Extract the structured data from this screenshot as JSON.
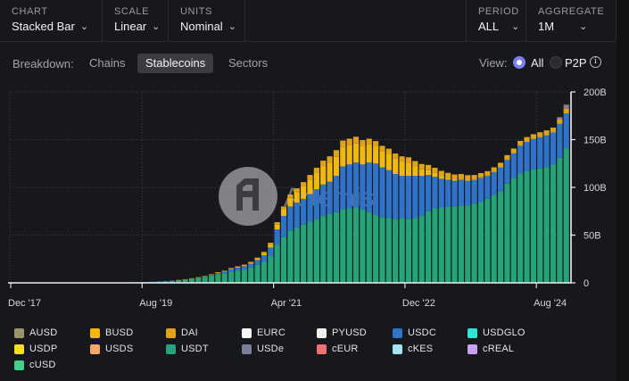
{
  "controls": {
    "chart": {
      "label": "CHART",
      "value": "Stacked Bar"
    },
    "scale": {
      "label": "SCALE",
      "value": "Linear"
    },
    "units": {
      "label": "UNITS",
      "value": "Nominal"
    },
    "period": {
      "label": "PERIOD",
      "value": "ALL"
    },
    "aggregate": {
      "label": "AGGREGATE",
      "value": "1M"
    }
  },
  "breakdown": {
    "label": "Breakdown:",
    "tabs": [
      "Chains",
      "Stablecoins",
      "Sectors"
    ],
    "active": "Stablecoins"
  },
  "view": {
    "label": "View:",
    "options": [
      "All",
      "P2P"
    ],
    "selected": "All",
    "info_icon": "info-icon"
  },
  "watermark": "Artemis",
  "colors": {
    "background": "#17181b",
    "accent": "#7b7cf7",
    "AUSD": "#9a946a",
    "BUSD": "#f0b90b",
    "DAI": "#e0a21c",
    "EURC": "#f5f5f5",
    "PYUSD": "#eeeeee",
    "USDC": "#2f73c9",
    "USDGLO": "#2ee6d6",
    "USDP": "#f3e21a",
    "USDS": "#f6a86a",
    "USDT": "#27a37a",
    "USDe": "#7c7f9a",
    "cEUR": "#f07070",
    "cKES": "#a6e3f2",
    "cREAL": "#c9a0f2",
    "cUSD": "#45cf8a"
  },
  "chart_data": {
    "type": "bar",
    "stacked": true,
    "x": [
      "2017-12",
      "2018-01",
      "2018-02",
      "2018-03",
      "2018-04",
      "2018-05",
      "2018-06",
      "2018-07",
      "2018-08",
      "2018-09",
      "2018-10",
      "2018-11",
      "2018-12",
      "2019-01",
      "2019-02",
      "2019-03",
      "2019-04",
      "2019-05",
      "2019-06",
      "2019-07",
      "2019-08",
      "2019-09",
      "2019-10",
      "2019-11",
      "2019-12",
      "2020-01",
      "2020-02",
      "2020-03",
      "2020-04",
      "2020-05",
      "2020-06",
      "2020-07",
      "2020-08",
      "2020-09",
      "2020-10",
      "2020-11",
      "2020-12",
      "2021-01",
      "2021-02",
      "2021-03",
      "2021-04",
      "2021-05",
      "2021-06",
      "2021-07",
      "2021-08",
      "2021-09",
      "2021-10",
      "2021-11",
      "2021-12",
      "2022-01",
      "2022-02",
      "2022-03",
      "2022-04",
      "2022-05",
      "2022-06",
      "2022-07",
      "2022-08",
      "2022-09",
      "2022-10",
      "2022-11",
      "2022-12",
      "2023-01",
      "2023-02",
      "2023-03",
      "2023-04",
      "2023-05",
      "2023-06",
      "2023-07",
      "2023-08",
      "2023-09",
      "2023-10",
      "2023-11",
      "2023-12",
      "2024-01",
      "2024-02",
      "2024-03",
      "2024-04",
      "2024-05",
      "2024-06",
      "2024-07",
      "2024-08",
      "2024-09",
      "2024-10",
      "2024-11",
      "2024-12"
    ],
    "x_ticks": [
      "Dec '17",
      "Aug '19",
      "Apr '21",
      "Dec '22",
      "Aug '24"
    ],
    "y_ticks": [
      "0",
      "50B",
      "100B",
      "150B",
      "200B"
    ],
    "ylim": [
      0,
      200
    ],
    "y_unit": "B",
    "grid": true,
    "series": [
      {
        "name": "USDT",
        "values": [
          0,
          0,
          0,
          0,
          0,
          0,
          0,
          0,
          0,
          0,
          0,
          0,
          0,
          0,
          0,
          0,
          0,
          0,
          0.5,
          0.6,
          0.8,
          1,
          1.3,
          1.5,
          2,
          2.4,
          3,
          4,
          5,
          6,
          7.5,
          9,
          10,
          12,
          13,
          14,
          16,
          19,
          22,
          28,
          40,
          48,
          55,
          58,
          61,
          64,
          67,
          70,
          72,
          74,
          77,
          78,
          79,
          77,
          74,
          71,
          69,
          68,
          67,
          68,
          67,
          68,
          70,
          75,
          78,
          79,
          80,
          80,
          81,
          81,
          83,
          85,
          88,
          92,
          96,
          104,
          110,
          114,
          117,
          119,
          120,
          121,
          124,
          131,
          141
        ]
      },
      {
        "name": "USDC",
        "values": [
          0,
          0,
          0,
          0,
          0,
          0,
          0,
          0,
          0,
          0,
          0,
          0,
          0,
          0,
          0,
          0,
          0,
          0,
          0,
          0,
          0,
          0.1,
          0.2,
          0.3,
          0.4,
          0.5,
          0.6,
          0.7,
          0.8,
          1,
          1.3,
          1.6,
          2,
          2.5,
          3,
          3.5,
          4,
          5,
          7,
          9,
          16,
          22,
          25,
          26,
          27,
          29,
          31,
          33,
          34,
          38,
          45,
          46,
          47,
          47,
          52,
          54,
          52,
          50,
          47,
          44,
          45,
          44,
          42,
          38,
          33,
          30,
          28,
          27,
          27,
          26,
          25,
          25,
          24,
          24,
          25,
          25,
          26,
          30,
          31,
          32,
          33,
          34,
          34,
          36,
          37
        ]
      },
      {
        "name": "BUSD",
        "values": [
          0,
          0,
          0,
          0,
          0,
          0,
          0,
          0,
          0,
          0,
          0,
          0,
          0,
          0,
          0,
          0,
          0,
          0,
          0,
          0,
          0,
          0,
          0,
          0,
          0,
          0,
          0,
          0,
          0,
          0,
          0,
          0.2,
          0.4,
          0.6,
          0.8,
          1,
          1.2,
          1.5,
          2,
          3,
          5,
          7,
          9,
          11,
          13,
          15,
          17,
          19,
          20,
          20,
          20,
          20,
          20,
          19,
          19,
          18,
          17,
          17,
          16,
          15,
          14,
          10,
          7,
          5,
          4,
          3,
          2,
          1.5,
          1,
          1,
          0.5,
          0.5,
          0.5,
          0.5,
          0.3,
          0.3,
          0.2,
          0.2,
          0.2,
          0.2,
          0.2,
          0.2,
          0.1,
          0.1,
          0.1
        ]
      },
      {
        "name": "DAI",
        "values": [
          0,
          0,
          0,
          0,
          0,
          0,
          0,
          0,
          0,
          0,
          0,
          0,
          0,
          0,
          0,
          0,
          0,
          0,
          0,
          0,
          0,
          0,
          0,
          0,
          0,
          0.05,
          0.1,
          0.1,
          0.1,
          0.15,
          0.2,
          0.25,
          0.3,
          0.4,
          0.5,
          0.6,
          0.8,
          1,
          1.5,
          2,
          2.5,
          3,
          3.5,
          4,
          4.5,
          5,
          5.5,
          6,
          6.5,
          7,
          7,
          7,
          7,
          6.5,
          6,
          5.5,
          5.5,
          5.5,
          5.5,
          5.5,
          5.5,
          5.5,
          5.5,
          5.5,
          5.5,
          5.3,
          5.2,
          5,
          5,
          4.8,
          4.5,
          4.5,
          4.5,
          4.5,
          4.5,
          4.5,
          4.5,
          4.5,
          4.5,
          4.5,
          4.5,
          4.5,
          4.5,
          4.5,
          4.5
        ]
      },
      {
        "name": "USDe",
        "values": [
          0,
          0,
          0,
          0,
          0,
          0,
          0,
          0,
          0,
          0,
          0,
          0,
          0,
          0,
          0,
          0,
          0,
          0,
          0,
          0,
          0,
          0,
          0,
          0,
          0,
          0,
          0,
          0,
          0,
          0,
          0,
          0,
          0,
          0,
          0,
          0,
          0,
          0,
          0,
          0,
          0,
          0,
          0,
          0,
          0,
          0,
          0,
          0,
          0,
          0,
          0,
          0,
          0,
          0,
          0,
          0,
          0,
          0,
          0,
          0,
          0,
          0,
          0,
          0,
          0,
          0,
          0,
          0,
          0,
          0,
          0,
          0,
          0,
          0,
          0,
          0,
          0,
          0,
          0,
          0,
          0,
          0,
          0,
          1.5,
          3
        ]
      },
      {
        "name": "AUSD",
        "values": [
          0,
          0,
          0,
          0,
          0,
          0,
          0,
          0,
          0,
          0,
          0,
          0,
          0,
          0,
          0,
          0,
          0,
          0,
          0,
          0,
          0,
          0,
          0,
          0,
          0,
          0,
          0,
          0,
          0,
          0,
          0,
          0,
          0,
          0,
          0,
          0,
          0,
          0,
          0,
          0,
          0,
          0,
          0,
          0,
          0,
          0,
          0,
          0,
          0,
          0,
          0,
          0,
          0,
          0,
          0,
          0,
          0,
          0,
          0,
          0,
          0,
          0,
          0,
          0,
          0,
          0,
          0,
          0,
          0,
          0,
          0,
          0,
          0,
          0,
          0,
          0,
          0,
          0,
          0,
          0,
          0,
          0,
          0,
          0.5,
          1
        ]
      }
    ]
  },
  "legend": [
    "AUSD",
    "BUSD",
    "DAI",
    "EURC",
    "PYUSD",
    "USDC",
    "USDGLO",
    "USDP",
    "USDS",
    "USDT",
    "USDe",
    "cEUR",
    "cKES",
    "cREAL",
    "cUSD"
  ]
}
